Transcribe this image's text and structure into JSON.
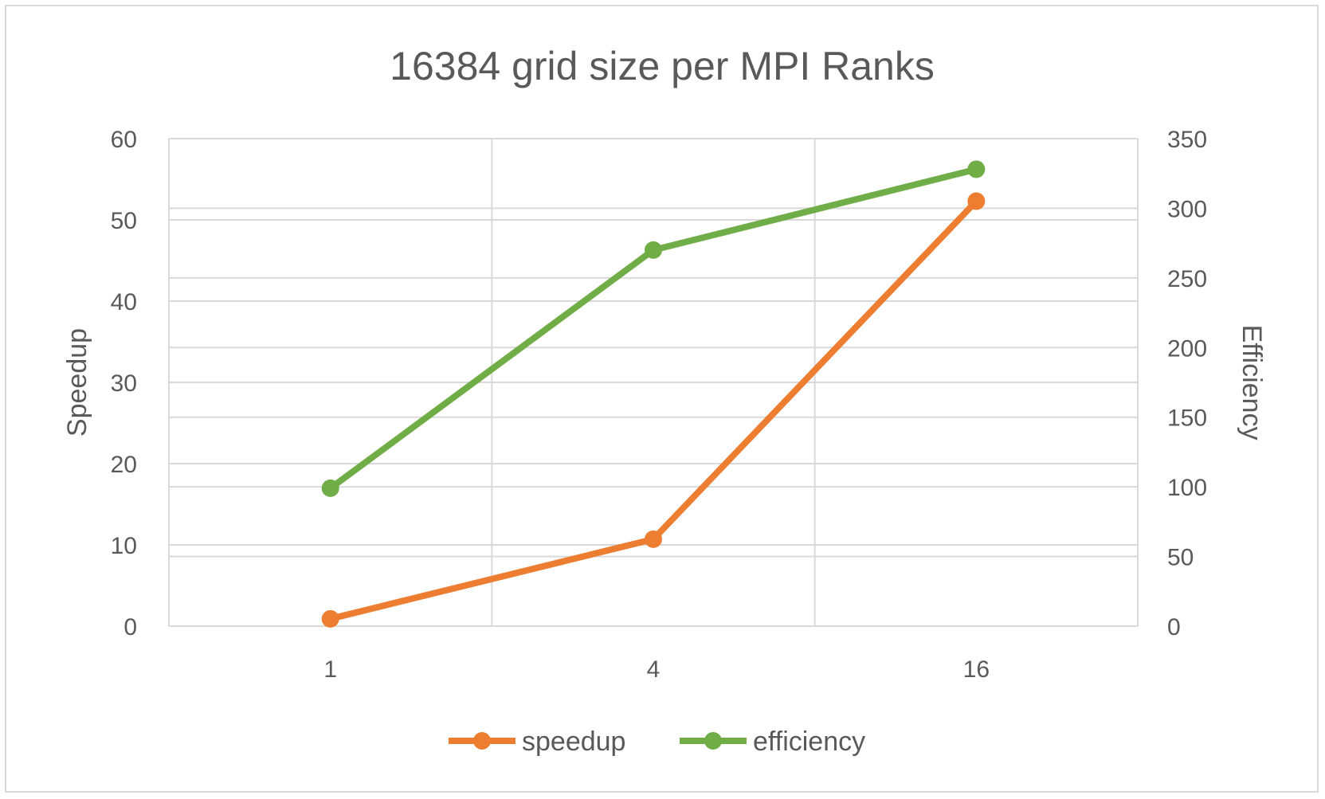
{
  "chart_data": {
    "type": "line",
    "title": "16384 grid size per MPI Ranks",
    "categories": [
      "1",
      "4",
      "16"
    ],
    "y_left": {
      "label": "Speedup",
      "range": [
        0,
        60
      ],
      "ticks": [
        0,
        10,
        20,
        30,
        40,
        50,
        60
      ]
    },
    "y_right": {
      "label": "Efficiency",
      "range": [
        0,
        350
      ],
      "ticks": [
        0,
        50,
        100,
        150,
        200,
        250,
        300,
        350
      ]
    },
    "series": [
      {
        "name": "speedup",
        "axis": "left",
        "values": [
          0.9,
          10.7,
          52.3
        ],
        "color": "#ed7d31"
      },
      {
        "name": "efficiency",
        "axis": "right",
        "values": [
          99,
          270,
          328
        ],
        "color": "#70ad47"
      }
    ],
    "gridlines": true,
    "legend_position": "bottom"
  }
}
